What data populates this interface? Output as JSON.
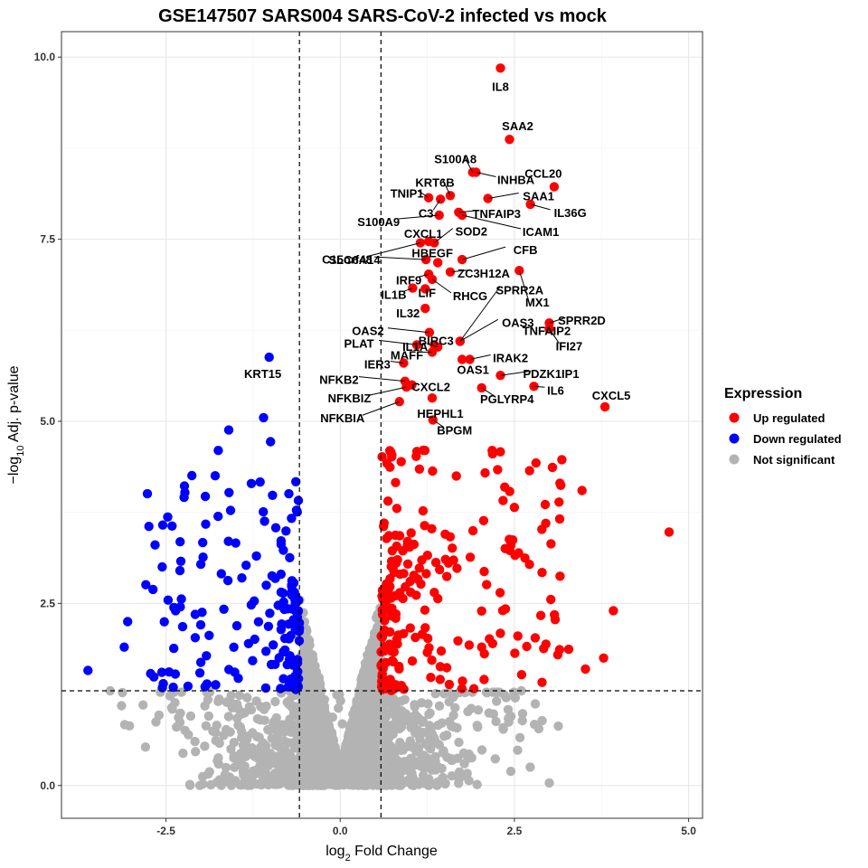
{
  "chart_data": {
    "type": "scatter",
    "title": "GSE147507 SARS004 SARS-CoV-2 infected vs mock",
    "xlabel": {
      "main": "log",
      "sub": "2",
      "rest": " Fold Change"
    },
    "ylabel": {
      "pre": "−log",
      "sub": "10",
      "rest": " Adj. p-value"
    },
    "xlim": [
      -4.0,
      5.2
    ],
    "ylim": [
      -0.45,
      10.35
    ],
    "xticks": [
      -2.5,
      0.0,
      2.5,
      5.0
    ],
    "xtick_labels": [
      "-2.5",
      "0.0",
      "2.5",
      "5.0"
    ],
    "yticks": [
      0.0,
      2.5,
      5.0,
      7.5,
      10.0
    ],
    "ytick_labels": [
      "0.0",
      "2.5",
      "5.0",
      "7.5",
      "10.0"
    ],
    "thresholds": {
      "log2fc": [
        -0.585,
        0.585
      ],
      "neg_log10_padj": 1.3
    },
    "legend": {
      "title": "Expression",
      "position": "right",
      "entries": [
        {
          "label": "Up regulated",
          "color": "#ff0000"
        },
        {
          "label": "Down regulated",
          "color": "#0000ff"
        },
        {
          "label": "Not significant",
          "color": "#b3b3b3"
        }
      ]
    },
    "colors": {
      "up": "#ff0000",
      "down": "#0000ff",
      "ns": "#b3b3b3"
    },
    "labeled_genes": [
      {
        "gene": "IL8",
        "x": 2.3,
        "y": 9.85
      },
      {
        "gene": "SAA2",
        "x": 2.43,
        "y": 8.87
      },
      {
        "gene": "S100A8",
        "x": 1.9,
        "y": 8.42
      },
      {
        "gene": "INHBA",
        "x": 1.95,
        "y": 8.42
      },
      {
        "gene": "CCL20",
        "x": 3.07,
        "y": 8.22
      },
      {
        "gene": "KRT6B",
        "x": 1.58,
        "y": 8.1
      },
      {
        "gene": "TNIP1",
        "x": 1.27,
        "y": 8.07
      },
      {
        "gene": "SAA1",
        "x": 2.12,
        "y": 8.06
      },
      {
        "gene": "C3",
        "x": 1.44,
        "y": 8.05
      },
      {
        "gene": "IL36G",
        "x": 2.73,
        "y": 7.98
      },
      {
        "gene": "TNFAIP3",
        "x": 1.7,
        "y": 7.87
      },
      {
        "gene": "S100A9",
        "x": 1.42,
        "y": 7.83
      },
      {
        "gene": "ICAM1",
        "x": 1.75,
        "y": 7.83
      },
      {
        "gene": "CXCL1",
        "x": 1.27,
        "y": 7.47
      },
      {
        "gene": "SOD2",
        "x": 1.35,
        "y": 7.45
      },
      {
        "gene": "C15orf48",
        "x": 1.15,
        "y": 7.45
      },
      {
        "gene": "CFB",
        "x": 1.75,
        "y": 7.22
      },
      {
        "gene": "SLC6A14",
        "x": 1.23,
        "y": 7.22
      },
      {
        "gene": "HBEGF",
        "x": 1.4,
        "y": 7.18
      },
      {
        "gene": "ZC3H12A",
        "x": 1.58,
        "y": 7.05
      },
      {
        "gene": "MX1",
        "x": 2.57,
        "y": 7.07
      },
      {
        "gene": "IRF9",
        "x": 1.27,
        "y": 7.02
      },
      {
        "gene": "RHCG",
        "x": 1.32,
        "y": 6.95
      },
      {
        "gene": "IL1B",
        "x": 1.04,
        "y": 6.83
      },
      {
        "gene": "LIF",
        "x": 1.22,
        "y": 6.82
      },
      {
        "gene": "OAS3",
        "x": 1.72,
        "y": 6.1
      },
      {
        "gene": "IL32",
        "x": 1.22,
        "y": 6.55
      },
      {
        "gene": "SPRR2A",
        "x": 1.72,
        "y": 6.1
      },
      {
        "gene": "OAS2",
        "x": 1.28,
        "y": 6.22
      },
      {
        "gene": "SPRR2D",
        "x": 3.0,
        "y": 6.35
      },
      {
        "gene": "BIRC3",
        "x": 1.35,
        "y": 6.05
      },
      {
        "gene": "TNFAIP2",
        "x": 3.0,
        "y": 6.27
      },
      {
        "gene": "PLAT",
        "x": 1.1,
        "y": 6.05
      },
      {
        "gene": "IL1A",
        "x": 1.4,
        "y": 6.02
      },
      {
        "gene": "IFI27",
        "x": 3.0,
        "y": 6.27
      },
      {
        "gene": "IRAK2",
        "x": 1.86,
        "y": 5.85
      },
      {
        "gene": "MAFF",
        "x": 1.32,
        "y": 5.95
      },
      {
        "gene": "IER3",
        "x": 0.91,
        "y": 5.8
      },
      {
        "gene": "OAS1",
        "x": 1.75,
        "y": 5.85
      },
      {
        "gene": "PDZK1IP1",
        "x": 2.3,
        "y": 5.63
      },
      {
        "gene": "NFKB2",
        "x": 0.93,
        "y": 5.55
      },
      {
        "gene": "CXCL2",
        "x": 1.03,
        "y": 5.5
      },
      {
        "gene": "IL6",
        "x": 2.78,
        "y": 5.48
      },
      {
        "gene": "NFKBIZ",
        "x": 0.95,
        "y": 5.47
      },
      {
        "gene": "PGLYRP4",
        "x": 2.03,
        "y": 5.46
      },
      {
        "gene": "HEPHL1",
        "x": 1.32,
        "y": 5.32
      },
      {
        "gene": "CXCL5",
        "x": 3.8,
        "y": 5.2
      },
      {
        "gene": "NFKBIA",
        "x": 0.85,
        "y": 5.27
      },
      {
        "gene": "BPGM",
        "x": 1.33,
        "y": 5.02
      },
      {
        "gene": "KRT15",
        "x": -1.02,
        "y": 5.88
      }
    ]
  }
}
